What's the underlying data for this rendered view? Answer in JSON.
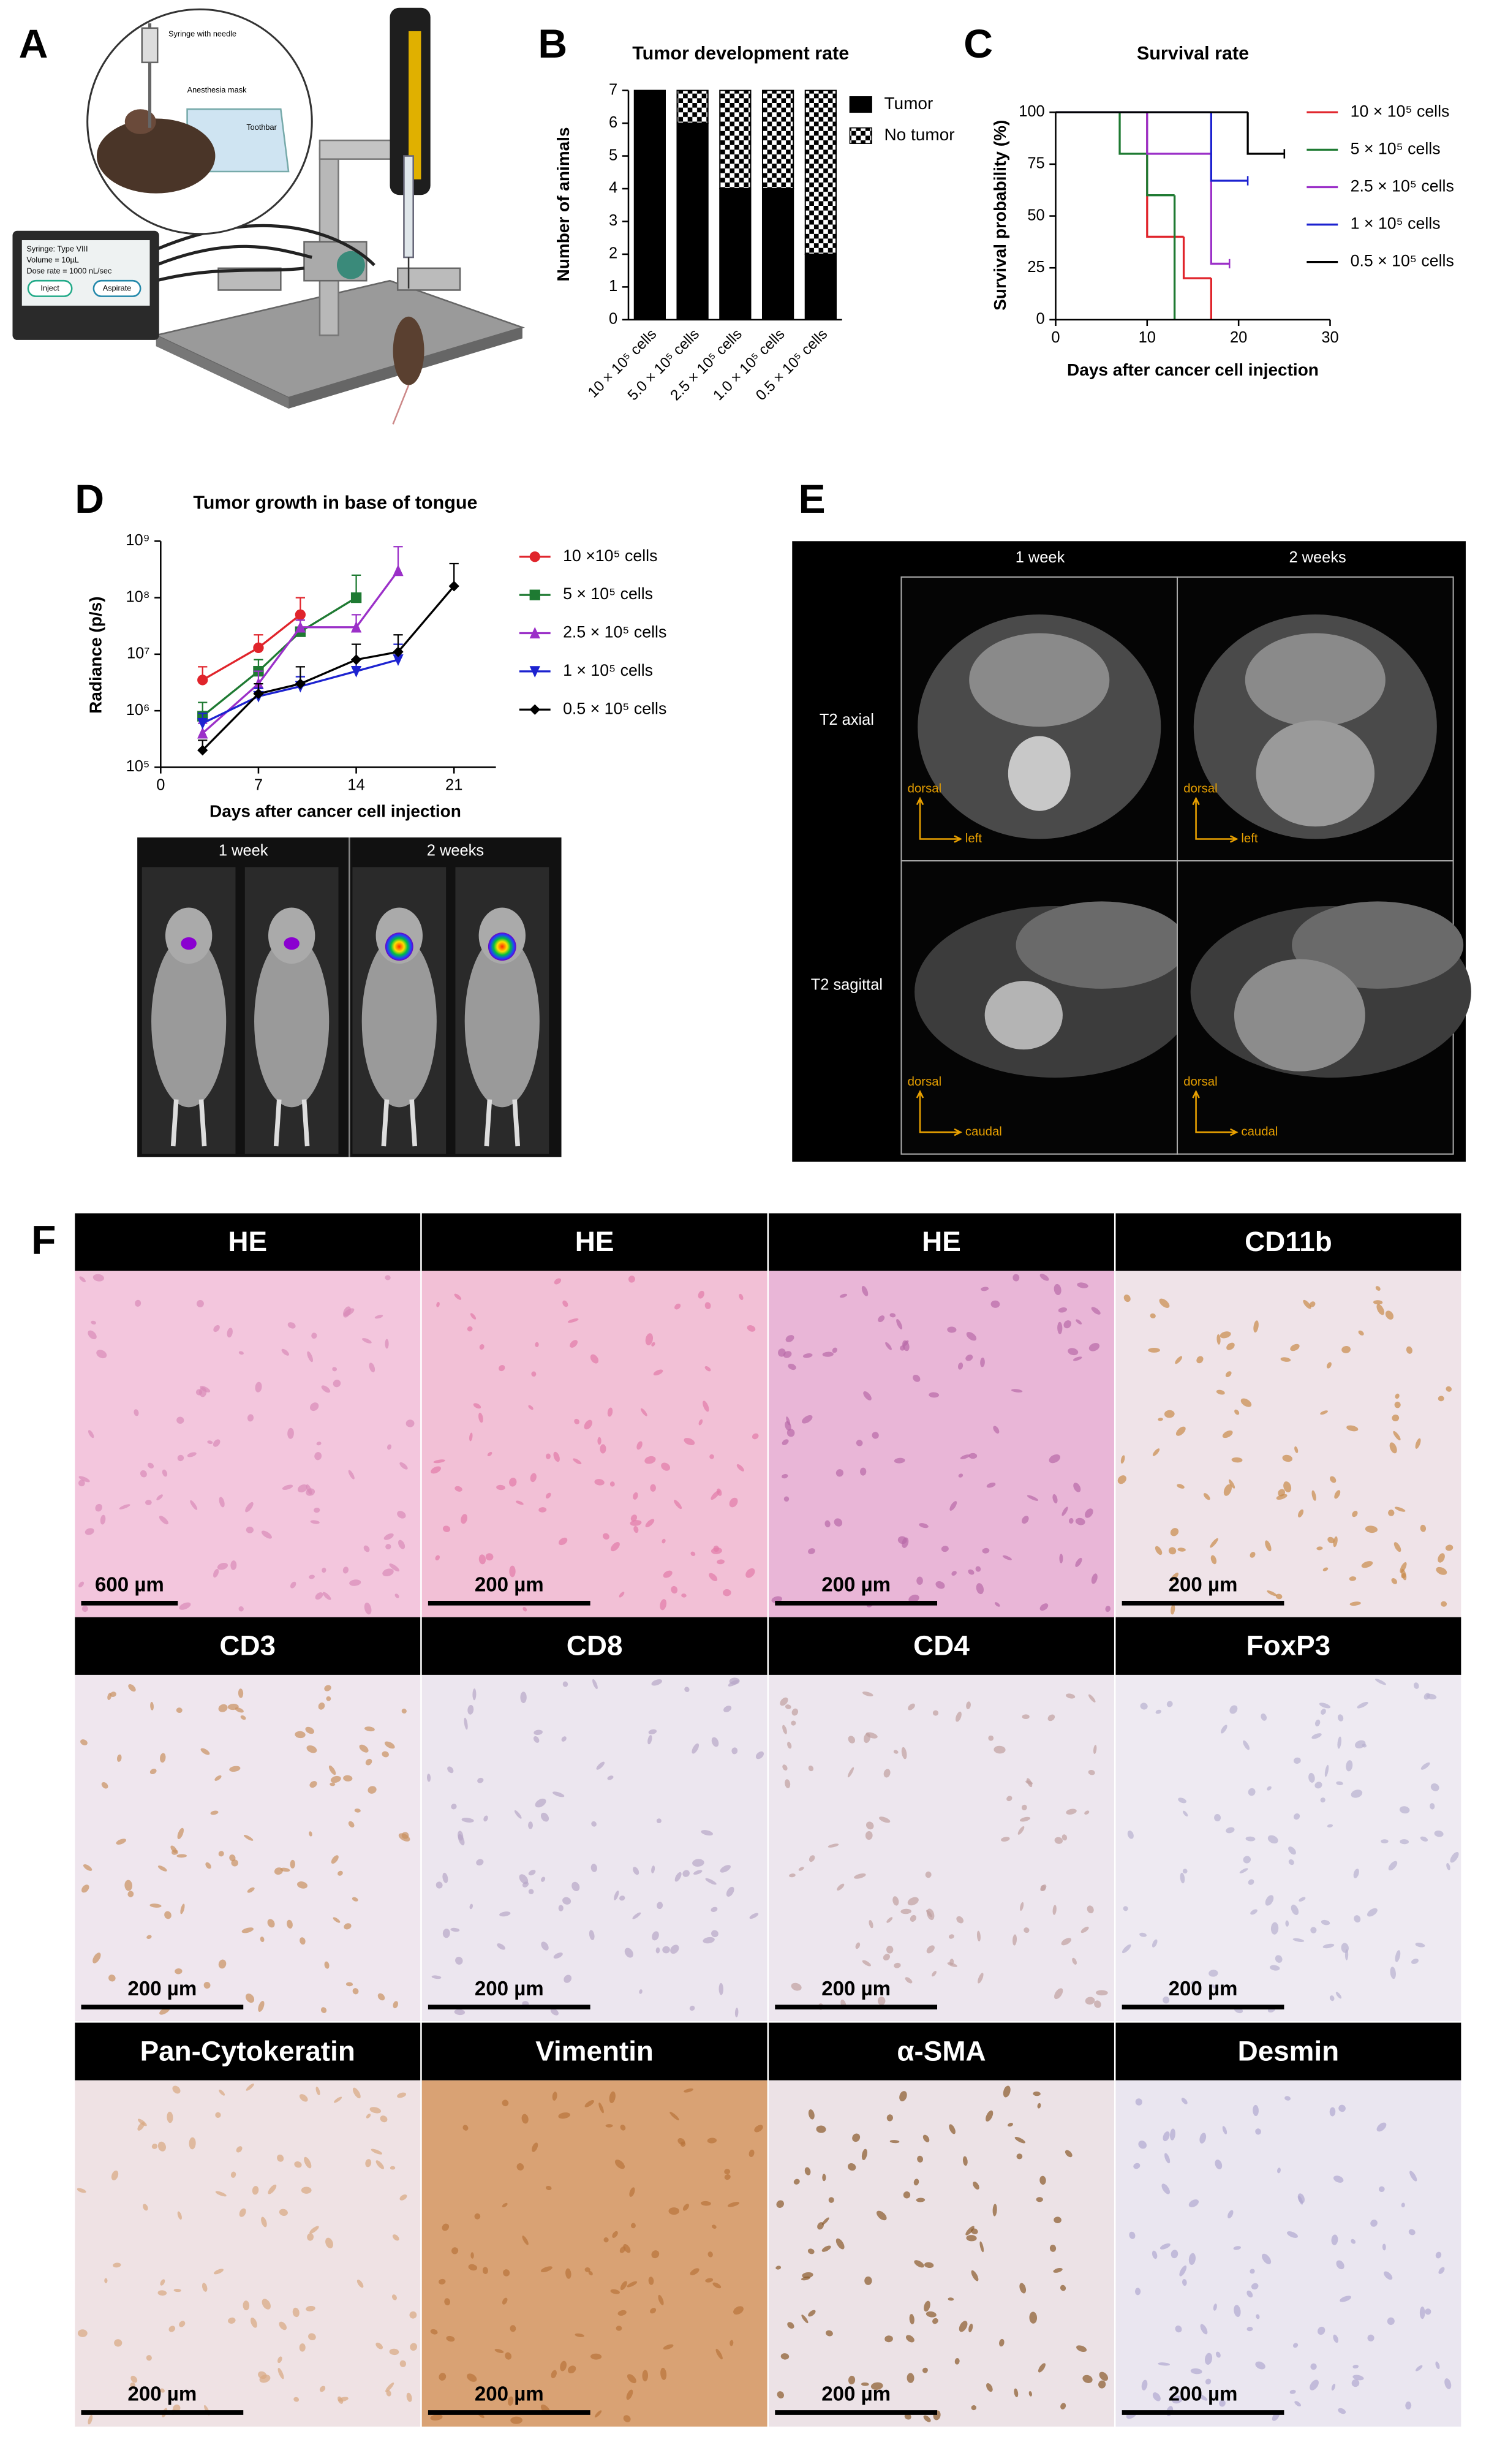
{
  "panel_labels": [
    "A",
    "B",
    "C",
    "D",
    "E",
    "F"
  ],
  "panel_a": {
    "labels": [
      "Syringe with needle",
      "Anesthesia mask",
      "Toothbar"
    ],
    "pump_screen": [
      "Syringe: Type VIII",
      "Volume = 10µL",
      "Dose rate = 1000 nL/sec"
    ],
    "buttons": [
      "Inject",
      "Aspirate"
    ]
  },
  "chart_data": [
    {
      "type": "bar",
      "stacked": true,
      "title": "Tumor development rate",
      "y_label": "Number of animals",
      "categories": [
        "10 × 10⁵ cells",
        "5.0 × 10⁵ cells",
        "2.5 × 10⁵ cells",
        "1.0 × 10⁵ cells",
        "0.5 × 10⁵ cells"
      ],
      "series": [
        {
          "name": "Tumor",
          "color": "#000000",
          "values": [
            7,
            6,
            4,
            4,
            2
          ]
        },
        {
          "name": "No tumor",
          "color": "#000000",
          "fill_pattern": "checkerboard",
          "values": [
            0,
            1,
            3,
            3,
            5
          ]
        }
      ],
      "ylim": [
        0,
        7
      ],
      "yticks": [
        0,
        1,
        2,
        3,
        4,
        5,
        6,
        7
      ],
      "legend": "right"
    },
    {
      "type": "line",
      "step": true,
      "title": "Survival rate",
      "x_label": "Days after cancer cell injection",
      "y_label": "Survival probability (%)",
      "series": [
        {
          "name": "10 × 10⁵ cells",
          "color": "#e0242b",
          "x": [
            0,
            10,
            14,
            17
          ],
          "values": [
            100,
            40,
            20,
            0
          ]
        },
        {
          "name": "5 × 10⁵ cells",
          "color": "#1e7a32",
          "x": [
            0,
            7,
            10,
            13
          ],
          "values": [
            100,
            80,
            60,
            0
          ]
        },
        {
          "name": "2.5 × 10⁵ cells",
          "color": "#9b30c8",
          "x": [
            0,
            10,
            17,
            19
          ],
          "values": [
            100,
            80,
            27,
            27
          ]
        },
        {
          "name": "1 × 10⁵ cells",
          "color": "#1c22d0",
          "x": [
            0,
            17,
            21
          ],
          "values": [
            100,
            67,
            67
          ]
        },
        {
          "name": "0.5 × 10⁵ cells",
          "color": "#000000",
          "x": [
            0,
            21,
            25
          ],
          "values": [
            100,
            80,
            80
          ]
        }
      ],
      "xlim": [
        0,
        30
      ],
      "xticks": [
        0,
        10,
        20,
        30
      ],
      "ylim": [
        0,
        100
      ],
      "yticks": [
        0,
        25,
        50,
        75,
        100
      ],
      "legend": "right"
    },
    {
      "type": "line",
      "log_y": true,
      "title": "Tumor growth in base of tongue",
      "x_label": "Days after cancer cell injection",
      "y_label": "Radiance (p/s)",
      "series": [
        {
          "name": "10 ×10⁵ cells",
          "color": "#e0242b",
          "marker": "circle",
          "x": [
            3,
            7,
            10
          ],
          "values": [
            3500000,
            13000000,
            50000000
          ],
          "upper": [
            6000000,
            22000000,
            100000000
          ]
        },
        {
          "name": "5 × 10⁵ cells",
          "color": "#1e7a32",
          "marker": "square",
          "x": [
            3,
            7,
            10,
            14
          ],
          "values": [
            800000,
            5000000,
            25000000,
            100000000
          ],
          "upper": [
            1400000,
            8000000,
            40000000,
            250000000
          ]
        },
        {
          "name": "2.5 × 10⁵ cells",
          "color": "#9b30c8",
          "marker": "triangle",
          "x": [
            3,
            7,
            10,
            14,
            17
          ],
          "values": [
            400000,
            3000000,
            30000000,
            30000000,
            300000000
          ],
          "upper": [
            600000,
            5000000,
            40000000,
            50000000,
            800000000
          ]
        },
        {
          "name": "1 × 10⁵ cells",
          "color": "#1c22d0",
          "marker": "triangle-down",
          "x": [
            3,
            7,
            10,
            14,
            17
          ],
          "values": [
            600000,
            1800000,
            2700000,
            5000000,
            8000000
          ],
          "upper": [
            900000,
            2500000,
            4000000,
            8000000,
            15000000
          ]
        },
        {
          "name": "0.5 × 10⁵ cells",
          "color": "#000000",
          "marker": "diamond",
          "x": [
            3,
            7,
            10,
            14,
            17,
            21
          ],
          "values": [
            200000,
            2000000,
            3000000,
            8000000,
            11000000,
            160000000
          ],
          "upper": [
            300000,
            3000000,
            6000000,
            15000000,
            22000000,
            400000000
          ]
        }
      ],
      "xlim": [
        0,
        24
      ],
      "xticks": [
        0,
        7,
        14,
        21
      ],
      "ylim": [
        100000,
        1000000000
      ],
      "yticks": [
        {
          "value": 100000,
          "label": "10⁵"
        },
        {
          "value": 1000000,
          "label": "10⁶"
        },
        {
          "value": 10000000,
          "label": "10⁷"
        },
        {
          "value": 100000000,
          "label": "10⁸"
        },
        {
          "value": 1000000000,
          "label": "10⁹"
        }
      ],
      "legend": "right"
    }
  ],
  "bioluminescence": {
    "headers": [
      "1 week",
      "2 weeks"
    ]
  },
  "mri": {
    "columns": [
      "1 week",
      "2 weeks"
    ],
    "rows": [
      "T2 axial",
      "T2 sagittal"
    ],
    "orientation": [
      [
        "dorsal",
        "left"
      ],
      [
        "dorsal",
        "left"
      ],
      [
        "dorsal",
        "caudal"
      ],
      [
        "dorsal",
        "caudal"
      ]
    ]
  },
  "histology": {
    "headers": [
      "HE",
      "HE",
      "HE",
      "CD11b",
      "CD3",
      "CD8",
      "CD4",
      "FoxP3",
      "Pan-Cytokeratin",
      "Vimentin",
      "α-SMA",
      "Desmin"
    ],
    "scale_bars": [
      "600 µm",
      "200 µm",
      "200 µm",
      "200 µm",
      "200 µm",
      "200 µm",
      "200 µm",
      "200 µm",
      "200 µm",
      "200 µm",
      "200 µm",
      "200 µm"
    ]
  }
}
